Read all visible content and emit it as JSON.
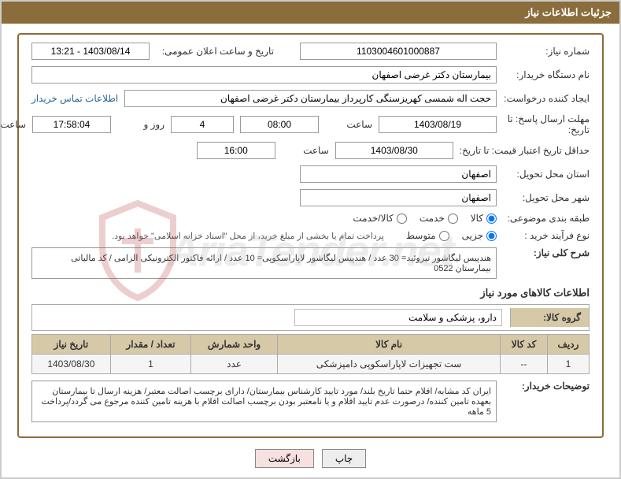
{
  "window": {
    "title": "جزئیات اطلاعات نیاز"
  },
  "fields": {
    "need_number_label": "شماره نیاز:",
    "need_number": "1103004601000887",
    "public_announce_label": "تاریخ و ساعت اعلان عمومی:",
    "public_announce": "1403/08/14 - 13:21",
    "buyer_org_label": "نام دستگاه خریدار:",
    "buyer_org": "بیمارستان دکتر غرضی اصفهان",
    "requester_label": "ایجاد کننده درخواست:",
    "requester": "حجت اله شمسی کهریزسنگی کارپرداز بیمارستان دکتر غرضی اصفهان",
    "contact_link": "اطلاعات تماس خریدار",
    "reply_deadline_label": "مهلت ارسال پاسخ: تا تاریخ:",
    "reply_deadline_date": "1403/08/19",
    "time_label": "ساعت",
    "reply_deadline_time": "08:00",
    "day_and": "روز و",
    "remaining_days": "4",
    "remaining_time": "17:58:04",
    "remaining_suffix": "ساعت باقی مانده",
    "price_validity_label": "حداقل تاریخ اعتبار قیمت: تا تاریخ:",
    "price_validity_date": "1403/08/30",
    "price_validity_time": "16:00",
    "delivery_province_label": "استان محل تحویل:",
    "delivery_province": "اصفهان",
    "delivery_city_label": "شهر محل تحویل:",
    "delivery_city": "اصفهان",
    "subject_class_label": "طبقه بندی موضوعی:",
    "radio_goods": "کالا",
    "radio_service": "خدمت",
    "radio_goods_service": "کالا/خدمت",
    "purchase_process_label": "نوع فرآیند خرید :",
    "radio_partial": "جزیی",
    "radio_medium": "متوسط",
    "purchase_note": "پرداخت تمام یا بخشی از مبلغ خرید، از محل \"اسناد خزانه اسلامی\" خواهد بود.",
    "general_desc_label": "شرح کلی نیاز:",
    "general_desc": "هندپیس لیگاشور تیروئید= 30 عدد / هندپیس لیگاشور لاپاراسکوپی= 10 عدد / ارائه فاکتور الکترونیکی الزامی / کد مالیاتی بیمارستان 0522",
    "goods_info_heading": "اطلاعات کالاهای مورد نیاز",
    "goods_group_label": "گروه کالا:",
    "goods_group": "دارو، پزشکی و سلامت",
    "buyer_notes_label": "توضیحات خریدار:",
    "buyer_notes": "ایران کد مشابه/ اقلام حتما تاریخ بلند/ مورد تایید کارشناس بیمارستان/ دارای برچسب اصالت معتبر/ هزینه ارسال تا بیمارستان بعهده تامین کننده/ درصورت عدم تایید اقلام و یا نامعتبر بودن برچسب اصالت اقلام با هزینه تامین کننده مرجوع می گردد/پرداخت 5 ماهه"
  },
  "table": {
    "headers": {
      "row": "ردیف",
      "goods_code": "کد کالا",
      "goods_name": "نام کالا",
      "unit": "واحد شمارش",
      "qty": "تعداد / مقدار",
      "need_date": "تاریخ نیاز"
    },
    "rows": [
      {
        "row": "1",
        "goods_code": "--",
        "goods_name": "ست تجهیزات لاپاراسکوپی دامپزشکی",
        "unit": "عدد",
        "qty": "1",
        "need_date": "1403/08/30"
      }
    ]
  },
  "buttons": {
    "print": "چاپ",
    "back": "بازگشت"
  },
  "watermark": "AriaTender.net",
  "styling": {
    "title_bg": "#8a6d3b",
    "title_fg": "#ffffff",
    "table_header_bg": "#d6c9a8",
    "border_color": "#8a6d3b",
    "link_color": "#2a6496"
  }
}
